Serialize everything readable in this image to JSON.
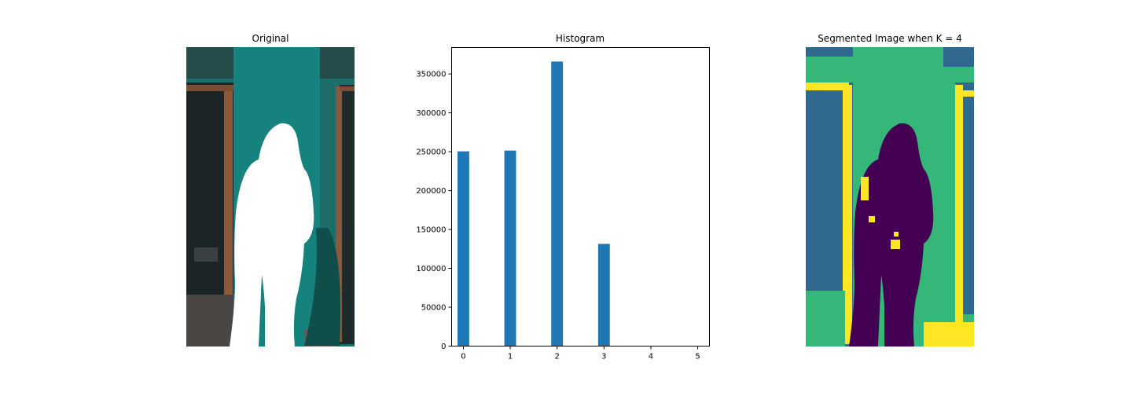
{
  "panels": {
    "original": {
      "title": "Original"
    },
    "histogram": {
      "title": "Histogram"
    },
    "segmented": {
      "title": "Segmented Image when K = 4"
    }
  },
  "colors": {
    "bar": "#1f77b4",
    "wall_teal": "#157e7a",
    "door_frame": "#8a5a3a",
    "viridis_purple": "#440154",
    "viridis_blue": "#31688e",
    "viridis_green": "#35b779",
    "viridis_yellow": "#fde725"
  },
  "chart_data": {
    "type": "bar",
    "title": "Histogram",
    "xlabel": "",
    "ylabel": "",
    "categories": [
      0,
      1,
      2,
      3
    ],
    "values": [
      250500,
      251500,
      366000,
      131500
    ],
    "xlim": [
      -0.25,
      5.25
    ],
    "ylim": [
      0,
      384000
    ],
    "xticks": [
      "0",
      "1",
      "2",
      "3",
      "4",
      "5"
    ],
    "yticks": [
      "0",
      "50000",
      "100000",
      "150000",
      "200000",
      "250000",
      "300000",
      "350000"
    ],
    "grid": false,
    "legend": "none"
  }
}
